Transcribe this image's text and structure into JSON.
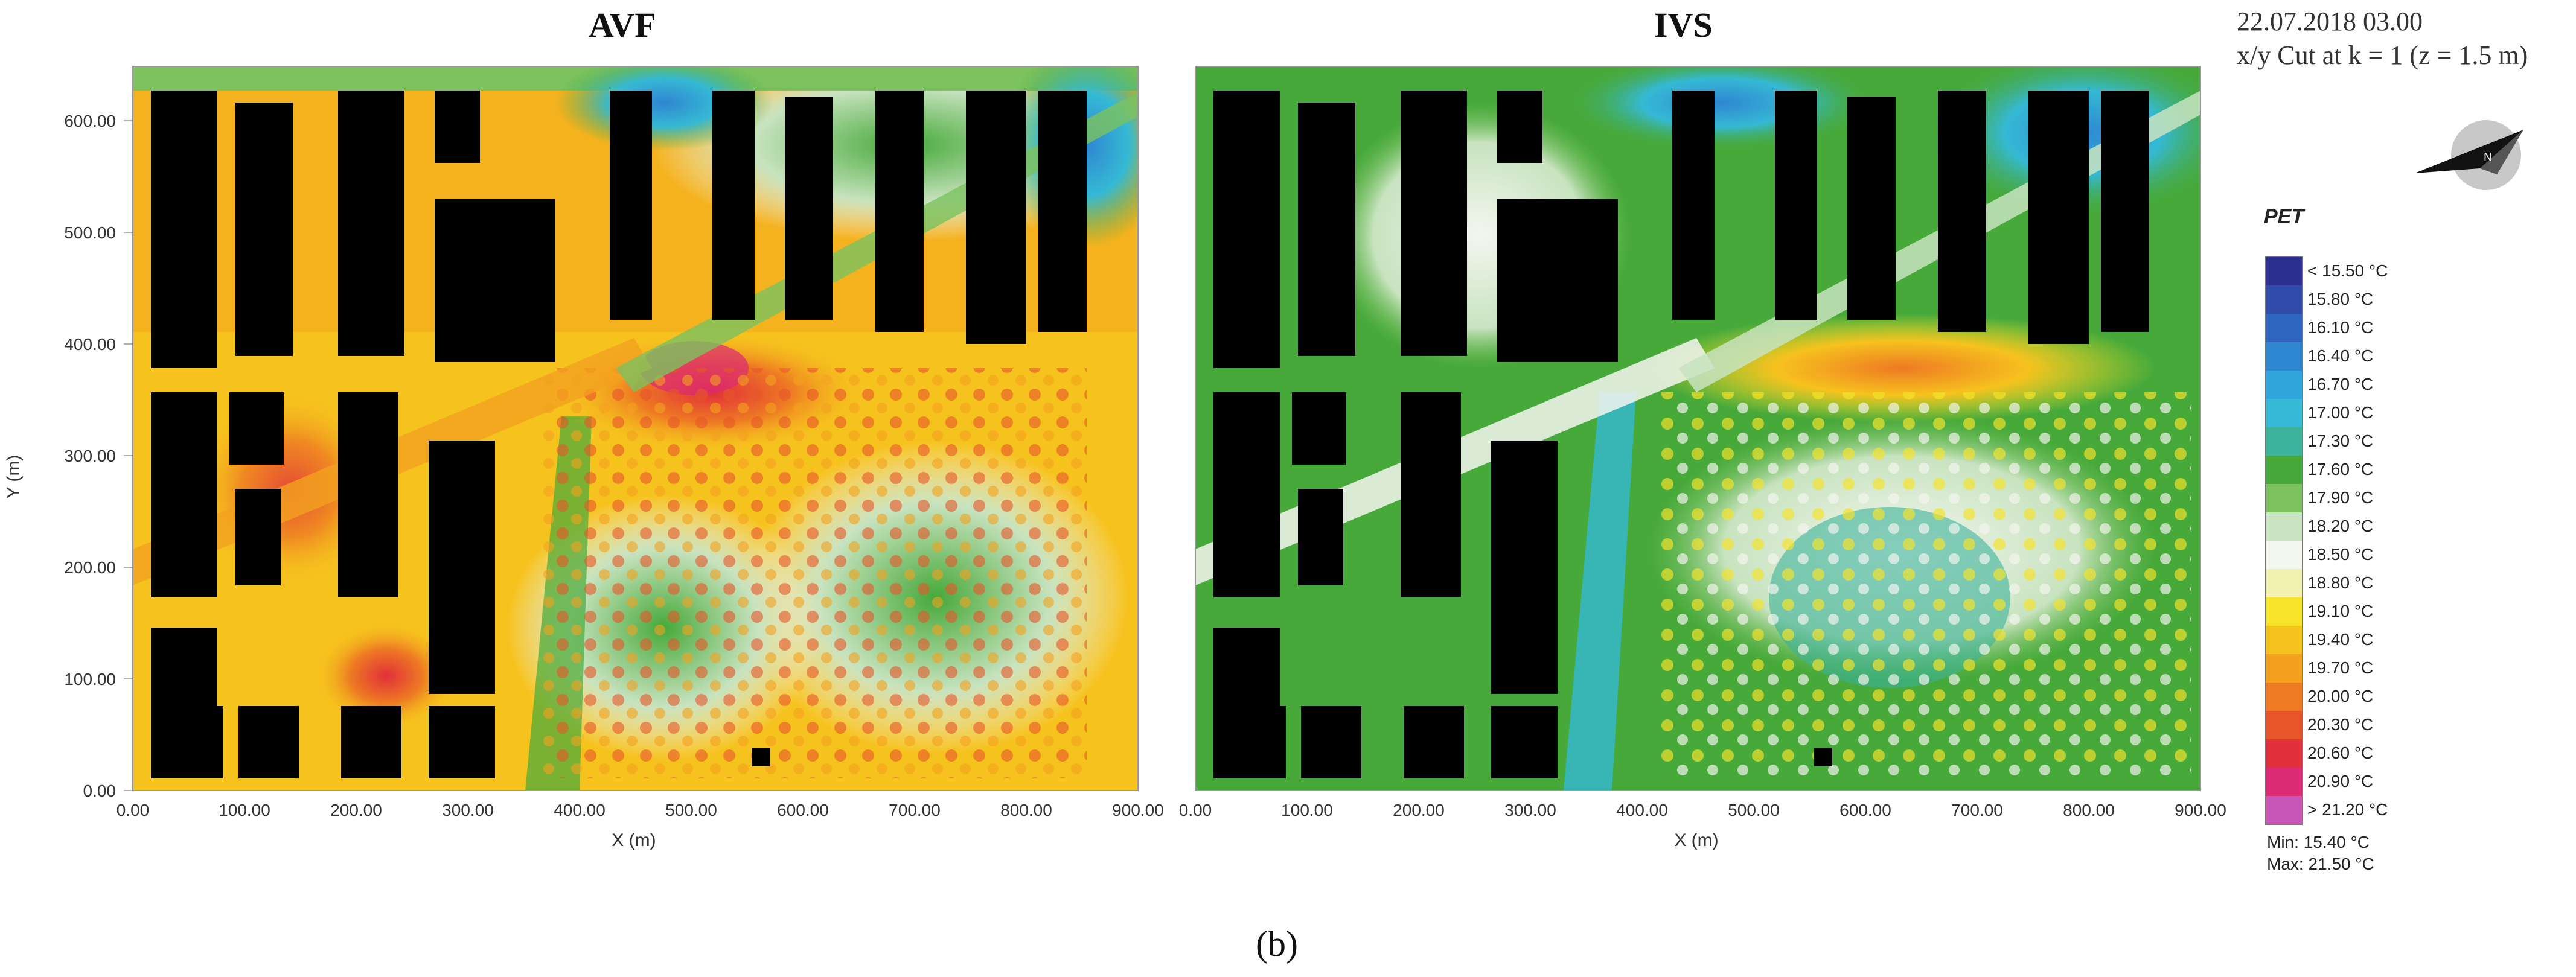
{
  "chart_data": [
    {
      "type": "heatmap",
      "title": "AVF",
      "xlabel": "X (m)",
      "ylabel": "Y (m)",
      "xlim": [
        0,
        900
      ],
      "ylim": [
        0,
        650
      ],
      "x_ticks": [
        "0.00",
        "100.00",
        "200.00",
        "300.00",
        "400.00",
        "500.00",
        "600.00",
        "700.00",
        "800.00",
        "900.00"
      ],
      "y_ticks": [
        "0.00",
        "100.00",
        "200.00",
        "300.00",
        "400.00",
        "500.00",
        "600.00"
      ],
      "min_value": 15.4,
      "max_value": 21.5
    },
    {
      "type": "heatmap",
      "title": "IVS",
      "xlabel": "X (m)",
      "ylabel": "",
      "xlim": [
        0,
        900
      ],
      "ylim": [
        0,
        650
      ],
      "x_ticks": [
        "0.00",
        "100.00",
        "200.00",
        "300.00",
        "400.00",
        "500.00",
        "600.00",
        "700.00",
        "800.00",
        "900.00"
      ],
      "min_value": 15.4,
      "max_value": 21.5
    }
  ],
  "header": {
    "datetime": "22.07.2018 03.00",
    "cut": "x/y Cut at k = 1 (z = 1.5 m)",
    "north_label": "N"
  },
  "legend": {
    "title": "PET",
    "entries": [
      {
        "label": "< 15.50 °C",
        "color": "#2a2f8f"
      },
      {
        "label": "15.80  °C",
        "color": "#2f4aa8"
      },
      {
        "label": "16.10  °C",
        "color": "#2e66bf"
      },
      {
        "label": "16.40  °C",
        "color": "#2f86d1"
      },
      {
        "label": "16.70  °C",
        "color": "#2fa4dd"
      },
      {
        "label": "17.00  °C",
        "color": "#35b9d4"
      },
      {
        "label": "17.30  °C",
        "color": "#3cb39a"
      },
      {
        "label": "17.60  °C",
        "color": "#47a93a"
      },
      {
        "label": "17.90  °C",
        "color": "#7cc25f"
      },
      {
        "label": "18.20  °C",
        "color": "#c8e3bf"
      },
      {
        "label": "18.50  °C",
        "color": "#f4f6f0"
      },
      {
        "label": "18.80  °C",
        "color": "#f3f1b0"
      },
      {
        "label": "19.10  °C",
        "color": "#f5e42a"
      },
      {
        "label": "19.40  °C",
        "color": "#f6c21e"
      },
      {
        "label": "19.70  °C",
        "color": "#f3a11f"
      },
      {
        "label": "20.00  °C",
        "color": "#ee7a23"
      },
      {
        "label": "20.30  °C",
        "color": "#e85529"
      },
      {
        "label": "20.60  °C",
        "color": "#e2303a"
      },
      {
        "label": "20.90  °C",
        "color": "#dc2a74"
      },
      {
        "label": "> 21.20 °C",
        "color": "#c857b8"
      }
    ],
    "min": "Min: 15.40 °C",
    "max": "Max: 21.50 °C"
  },
  "caption": "(b)"
}
